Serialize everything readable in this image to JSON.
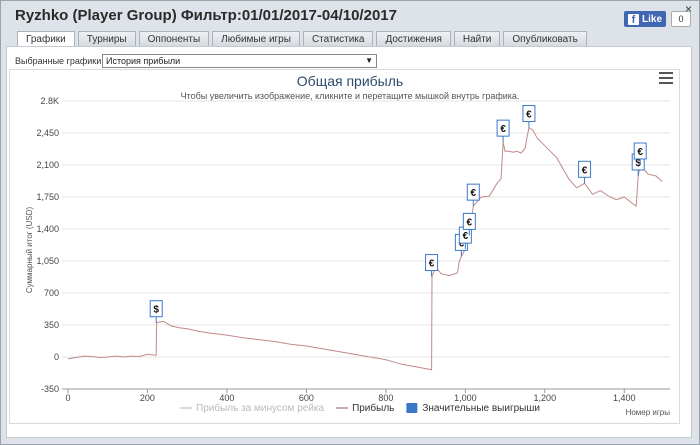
{
  "window": {
    "title": "Ryzhko (Player Group) Фильтр:01/01/2017-04/10/2017",
    "close_glyph": "×",
    "facebook": {
      "icon": "f",
      "like_label": "Like",
      "count": "0"
    }
  },
  "tabs": [
    {
      "label": "Графики",
      "active": true
    },
    {
      "label": "Турниры"
    },
    {
      "label": "Оппоненты"
    },
    {
      "label": "Любимые игры"
    },
    {
      "label": "Статистика"
    },
    {
      "label": "Достижения"
    },
    {
      "label": "Найти"
    },
    {
      "label": "Опубликовать"
    }
  ],
  "graph_select": {
    "label": "Выбранные графики:",
    "value": "История прибыли"
  },
  "chart_data": {
    "type": "line",
    "title": "Общая прибыль",
    "subtitle": "Чтобы увеличить изображение, кликните и перетащите мышкой внутрь графика.",
    "xlabel": "Номер игры",
    "ylabel": "Суммарный итог (USD)",
    "xlim": [
      -15,
      1515
    ],
    "ylim": [
      -350,
      2800
    ],
    "x_ticks": [
      0,
      200,
      400,
      600,
      800,
      1000,
      1200,
      1400
    ],
    "x_tick_labels": [
      "0",
      "200",
      "400",
      "600",
      "800",
      "1,000",
      "1,200",
      "1,400"
    ],
    "y_ticks": [
      -350,
      0,
      350,
      700,
      1050,
      1400,
      1750,
      2100,
      2450,
      2800
    ],
    "y_tick_labels": [
      "-350",
      "0",
      "350",
      "700",
      "1,050",
      "1,400",
      "1,750",
      "2,100",
      "2,450",
      "2.8K"
    ],
    "grid": true,
    "legend_position": "bottom",
    "legend": [
      {
        "name": "Прибыль за минусом рейка",
        "color": "#cccccc",
        "style": "line"
      },
      {
        "name": "Прибыль",
        "color": "#c08a8a",
        "style": "line"
      },
      {
        "name": "Значительные выигрыши",
        "color": "#3c78c8",
        "style": "box"
      }
    ],
    "series": [
      {
        "name": "Прибыль",
        "color": "#c08a8a",
        "x": [
          0,
          20,
          40,
          60,
          80,
          100,
          120,
          140,
          160,
          180,
          200,
          222,
          223,
          240,
          260,
          280,
          300,
          330,
          360,
          400,
          440,
          480,
          520,
          560,
          600,
          640,
          680,
          720,
          760,
          800,
          840,
          880,
          915,
          916,
          925,
          940,
          960,
          980,
          985,
          990,
          1000,
          1005,
          1010,
          1020,
          1040,
          1060,
          1080,
          1090,
          1095,
          1100,
          1110,
          1120,
          1130,
          1140,
          1150,
          1160,
          1170,
          1180,
          1200,
          1230,
          1260,
          1280,
          1300,
          1320,
          1340,
          1360,
          1380,
          1400,
          1420,
          1430,
          1435,
          1440,
          1460,
          1480,
          1495
        ],
        "y": [
          -20,
          -5,
          10,
          5,
          -5,
          0,
          10,
          0,
          10,
          5,
          30,
          20,
          375,
          390,
          340,
          320,
          310,
          280,
          260,
          240,
          210,
          190,
          170,
          140,
          120,
          90,
          60,
          30,
          0,
          -30,
          -80,
          -110,
          -140,
          880,
          980,
          910,
          890,
          920,
          1050,
          1100,
          1180,
          1300,
          1330,
          1650,
          1750,
          1760,
          1900,
          1950,
          2350,
          2250,
          2250,
          2240,
          2250,
          2230,
          2280,
          2510,
          2480,
          2400,
          2310,
          2180,
          1950,
          1850,
          1900,
          1780,
          1820,
          1760,
          1720,
          1750,
          1680,
          1650,
          1980,
          2100,
          2000,
          1980,
          1920
        ]
      }
    ],
    "markers": [
      {
        "x": 222,
        "y": 375,
        "symbol": "$"
      },
      {
        "x": 915,
        "y": 880,
        "symbol": "€"
      },
      {
        "x": 990,
        "y": 1100,
        "symbol": "€"
      },
      {
        "x": 1000,
        "y": 1180,
        "symbol": "€"
      },
      {
        "x": 1010,
        "y": 1330,
        "symbol": "€"
      },
      {
        "x": 1020,
        "y": 1650,
        "symbol": "€"
      },
      {
        "x": 1095,
        "y": 2350,
        "symbol": "€"
      },
      {
        "x": 1160,
        "y": 2510,
        "symbol": "€"
      },
      {
        "x": 1300,
        "y": 1900,
        "symbol": "€"
      },
      {
        "x": 1435,
        "y": 1980,
        "symbol": "$"
      },
      {
        "x": 1440,
        "y": 2100,
        "symbol": "€"
      }
    ]
  }
}
